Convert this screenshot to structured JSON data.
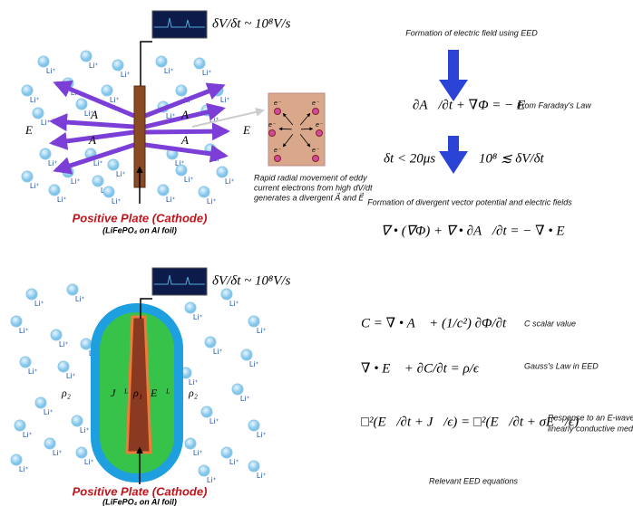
{
  "top_panel": {
    "rate": "δV/δt ~ 10⁸V/s",
    "ion": "Li⁺",
    "vector_potential": "A⃗",
    "field": "E⃗",
    "electron": "e⁻",
    "caption": [
      "Rapid radial movement of eddy",
      "current electrons from high dV/dt",
      "generates a divergent A⃗ and E⃗"
    ],
    "plate_title": "Positive Plate (Cathode)",
    "plate_subtitle": "(LiFePO₄ on Al foil)"
  },
  "bottom_panel": {
    "rate": "δV/δt ~ 10⁸V/s",
    "ion": "Li⁺",
    "rho_outer": "ρ₂",
    "rho_inner": "ρ₁",
    "current": "J⃗ᴸ",
    "inner_field": "E⃗ᴸ",
    "plate_title": "Positive Plate (Cathode)",
    "plate_subtitle": "(LiFePO₄ on Al foil)"
  },
  "equations_top": {
    "heading": "Formation of electric field using EED",
    "faraday": {
      "equation": "∂A⃗/∂t + ∇Φ = − E⃗",
      "note": "From Faraday's Law"
    },
    "time_condition": "δt < 20μs",
    "rate_condition": "10⁸ ≲ δV/δt",
    "divergence_heading": "Formation of divergent vector potential and electric fields",
    "divergence_equation": "∇ • (∇Φ) + ∇ • ∂A⃗/∂t = − ∇ • E⃗"
  },
  "equations_bottom": {
    "scalar": {
      "equation": "C = ∇ • A⃗ + (1/c²) ∂Φ/∂t",
      "note": "C scalar value"
    },
    "gauss": {
      "equation": "∇ • E⃗ + ∂C/∂t = ρ/ϵ",
      "note": "Gauss's Law in EED"
    },
    "wave": {
      "equation": "□²(E⃗/∂t + J⃗/ϵ) = □²(E⃗/∂t + σE⃗/ϵ)",
      "note": [
        "Response to an E-wave in",
        "linearly conductive media"
      ]
    },
    "caption": "Relevant EED equations"
  }
}
